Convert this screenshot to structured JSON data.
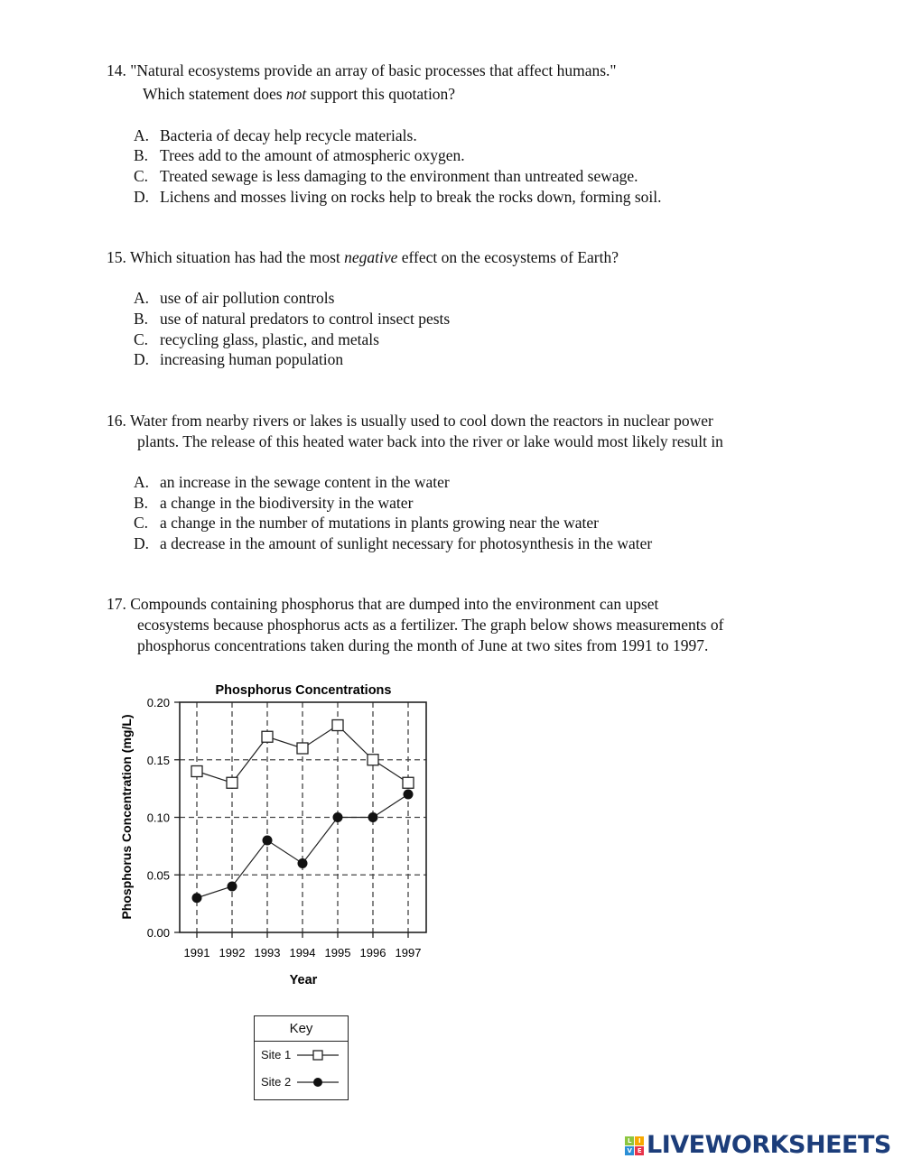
{
  "questions": [
    {
      "number": "14.",
      "lines": [
        "\"Natural ecosystems provide an array of basic processes that affect humans.\""
      ],
      "line2_pre": "Which statement does ",
      "line2_em": "not",
      "line2_post": " support this quotation?",
      "options": [
        {
          "letter": "A.",
          "text": "Bacteria of decay help recycle materials."
        },
        {
          "letter": "B.",
          "text": "Trees add to the amount of atmospheric oxygen."
        },
        {
          "letter": "C.",
          "text": "Treated sewage is less damaging to the environment than untreated sewage."
        },
        {
          "letter": "D.",
          "text": "Lichens and mosses living on rocks help to break the rocks down, forming soil."
        }
      ]
    },
    {
      "number": "15.",
      "pre": "Which situation has had the most ",
      "em": "negative",
      "post": " effect on the ecosystems of Earth?",
      "options": [
        {
          "letter": "A.",
          "text": "use of air pollution controls"
        },
        {
          "letter": "B.",
          "text": "use of natural predators to control insect pests"
        },
        {
          "letter": "C.",
          "text": "recycling glass, plastic, and metals"
        },
        {
          "letter": "D.",
          "text": "increasing human population"
        }
      ]
    },
    {
      "number": "16.",
      "lines": [
        "Water from nearby rivers or lakes is usually used to cool down the reactors in nuclear power",
        "plants. The release of this heated water back into the river or lake would most likely result in"
      ],
      "options": [
        {
          "letter": "A.",
          "text": "an increase in the sewage content in the water"
        },
        {
          "letter": "B.",
          "text": "a change in the biodiversity in the water"
        },
        {
          "letter": "C.",
          "text": "a change in the number of mutations in plants growing near the water"
        },
        {
          "letter": "D.",
          "text": "a decrease in the amount of sunlight necessary for photosynthesis in the water"
        }
      ]
    },
    {
      "number": "17.",
      "lines": [
        "Compounds containing phosphorus that are dumped into the environment can upset",
        "ecosystems because phosphorus acts as a fertilizer. The graph below shows measurements of",
        "phosphorus concentrations taken during the month of June at two sites from 1991 to 1997."
      ]
    }
  ],
  "chart_data": {
    "type": "line",
    "title": "Phosphorus Concentrations",
    "xlabel": "Year",
    "ylabel": "Phosphorus Concentration (mg/L)",
    "categories": [
      "1991",
      "1992",
      "1993",
      "1994",
      "1995",
      "1996",
      "1997"
    ],
    "ylim": [
      0,
      0.2
    ],
    "yticks": [
      "0.00",
      "0.05",
      "0.10",
      "0.15",
      "0.20"
    ],
    "grid": true,
    "series": [
      {
        "name": "Site 1",
        "marker": "open-square",
        "values": [
          0.14,
          0.13,
          0.17,
          0.16,
          0.18,
          0.15,
          0.13
        ]
      },
      {
        "name": "Site 2",
        "marker": "filled-circle",
        "values": [
          0.03,
          0.04,
          0.08,
          0.06,
          0.1,
          0.1,
          0.12
        ]
      }
    ],
    "legend": {
      "title": "Key",
      "placement": "below"
    }
  },
  "logo": {
    "text": "LIVEWORKSHEETS",
    "tiles": [
      "L",
      "I",
      "V",
      "E"
    ],
    "color": "#1c3d7a"
  }
}
